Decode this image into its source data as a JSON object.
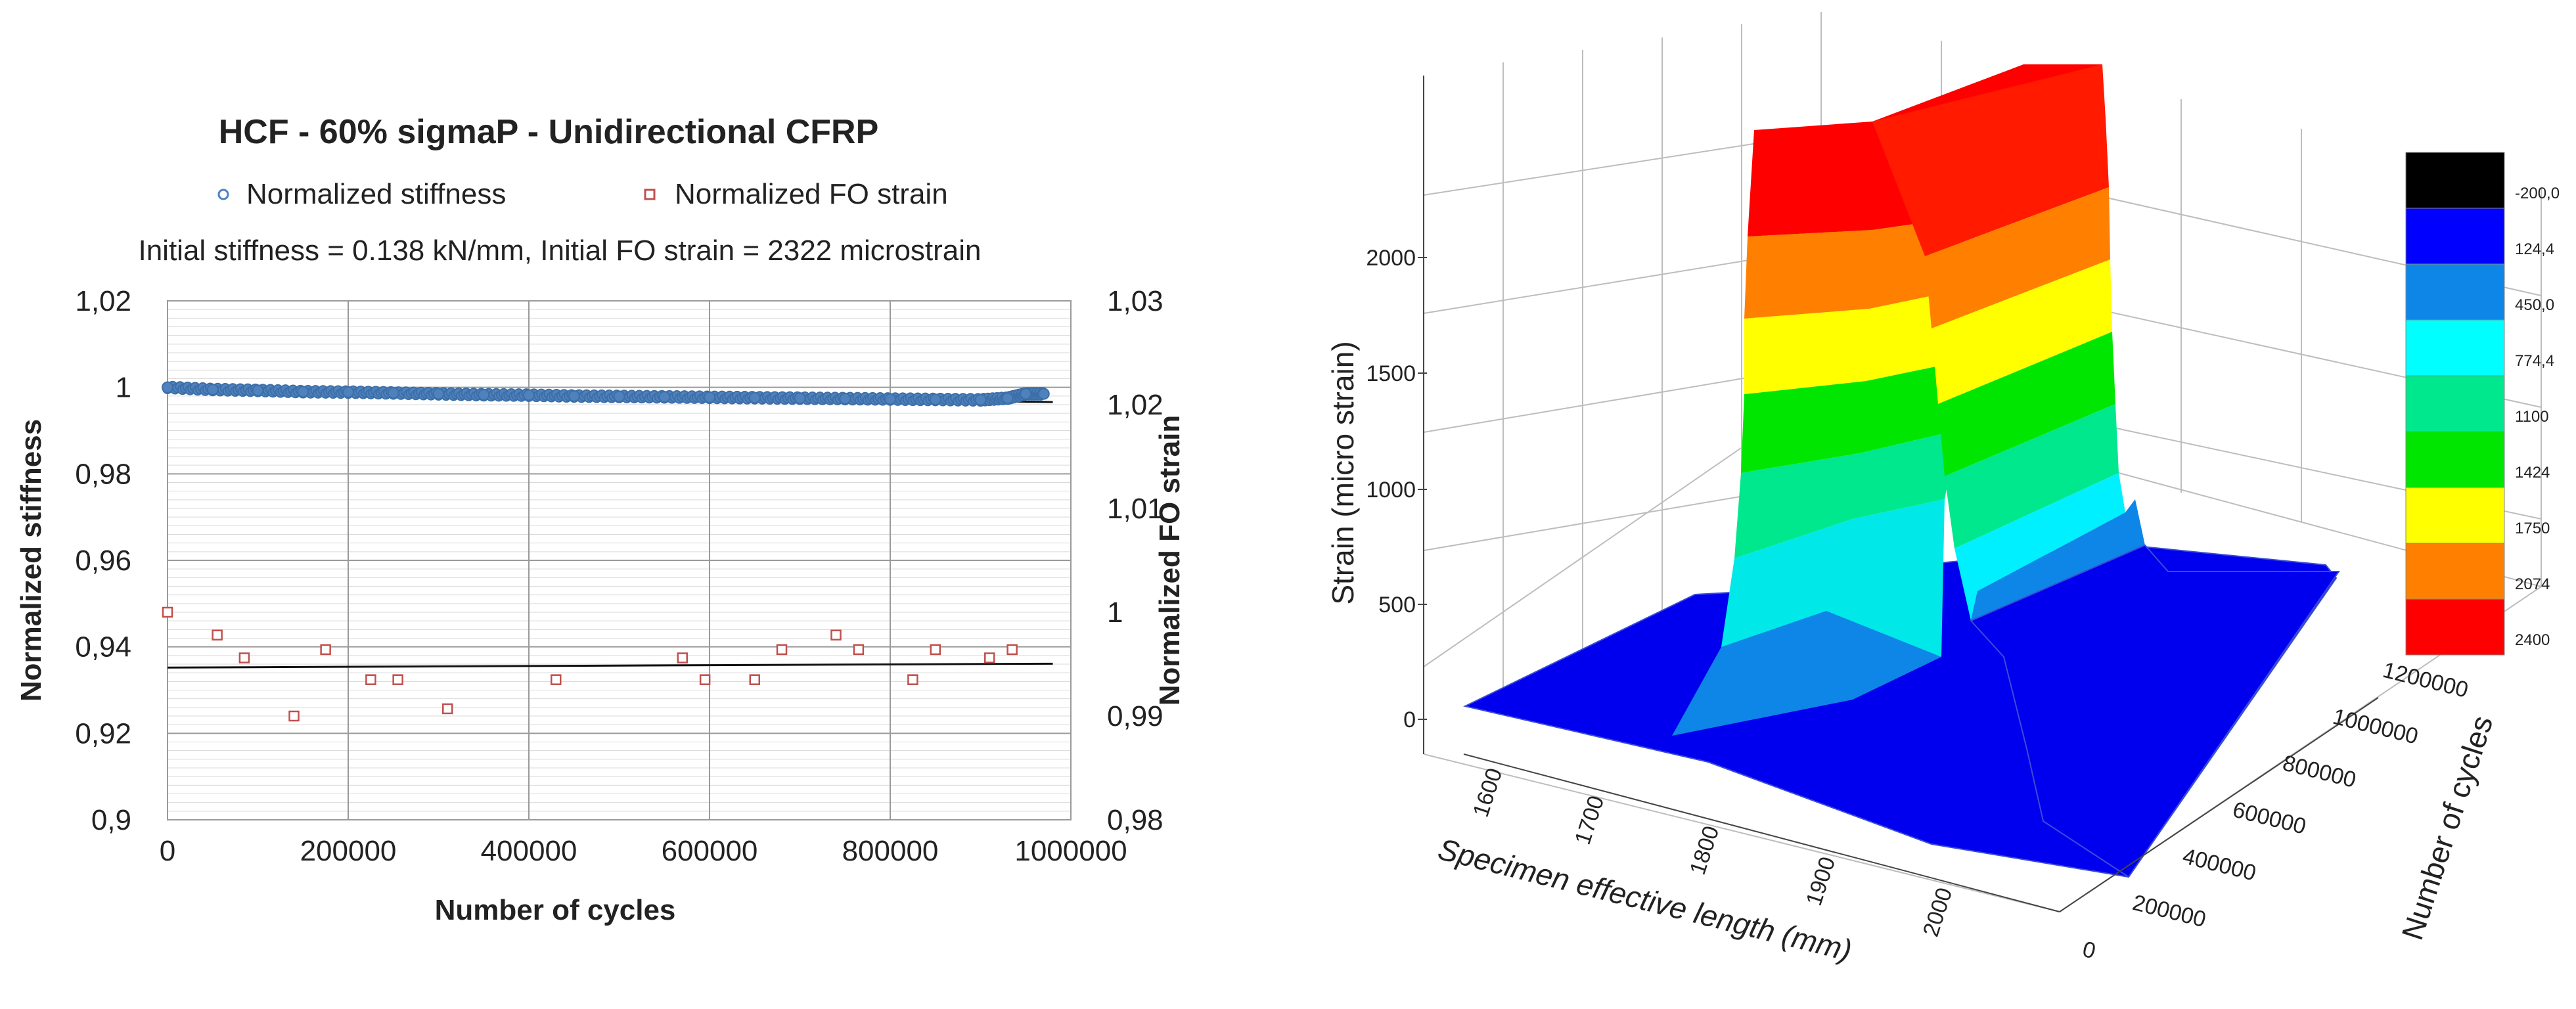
{
  "chart_data": [
    {
      "type": "scatter",
      "title": "HCF - 60% sigmaP - Unidirectional CFRP",
      "subtitle": "Initial stiffness = 0.138 kN/mm, Initial FO strain = 2322 microstrain",
      "xlabel": "Number of cycles",
      "ylabel": "Normalized stiffness",
      "y2label": "Normalized FO strain",
      "xlim": [
        0,
        1000000
      ],
      "ylim": [
        0.9,
        1.02
      ],
      "y2lim": [
        0.98,
        1.03
      ],
      "x_ticks": [
        "0",
        "200000",
        "400000",
        "600000",
        "800000",
        "1000000"
      ],
      "y_ticks": [
        "0,9",
        "0,92",
        "0,94",
        "0,96",
        "0,98",
        "1",
        "1,02"
      ],
      "y2_ticks": [
        "0,98",
        "0,99",
        "1",
        "1,01",
        "1,02",
        "1,03"
      ],
      "legend": [
        "Normalized stiffness",
        "Normalized FO strain"
      ],
      "series": [
        {
          "name": "Normalized stiffness",
          "axis": "left",
          "marker": "circle",
          "color": "#4f81bd",
          "x": [
            0,
            50000,
            100000,
            150000,
            200000,
            250000,
            300000,
            350000,
            400000,
            450000,
            500000,
            550000,
            600000,
            650000,
            700000,
            750000,
            800000,
            850000,
            900000,
            930000,
            950000,
            970000
          ],
          "y": [
            1.0,
            0.9995,
            0.9993,
            0.999,
            0.9989,
            0.9987,
            0.9985,
            0.9983,
            0.9982,
            0.998,
            0.9979,
            0.9978,
            0.9977,
            0.9976,
            0.9975,
            0.9974,
            0.9973,
            0.9972,
            0.9971,
            0.9975,
            0.9985,
            0.9985
          ],
          "trend_left": {
            "x": [
              0,
              980000
            ],
            "y": [
              0.9995,
              0.9966
            ]
          }
        },
        {
          "name": "Normalized FO strain",
          "axis": "right",
          "marker": "square",
          "color": "#c0504d",
          "x": [
            0,
            55000,
            85000,
            140000,
            175000,
            225000,
            255000,
            310000,
            430000,
            570000,
            595000,
            650000,
            680000,
            740000,
            765000,
            825000,
            850000,
            910000,
            935000
          ],
          "y": [
            1.0,
            0.9978,
            0.9956,
            0.99,
            0.9964,
            0.9935,
            0.9935,
            0.9907,
            0.9935,
            0.9956,
            0.9935,
            0.9935,
            0.9964,
            0.9978,
            0.9964,
            0.9935,
            0.9964,
            0.9956,
            0.9964
          ],
          "trend_left": {
            "x": [
              0,
              980000
            ],
            "y": [
              0.9352,
              0.9361
            ]
          }
        }
      ]
    },
    {
      "type": "surface3d",
      "xlabel": "Specimen effective length (mm)",
      "ylabel": "Number of cycles",
      "zlabel": "Strain (micro strain)",
      "x_ticks": [
        "1600",
        "1700",
        "1800",
        "1900",
        "2000"
      ],
      "y_ticks": [
        "0",
        "200000",
        "400000",
        "600000",
        "800000",
        "1000000",
        "1200000"
      ],
      "z_ticks": [
        "0",
        "500",
        "1000",
        "1500",
        "2000"
      ],
      "colorbar_levels": [
        "-200,0",
        "124,4",
        "450,0",
        "774,4",
        "1100",
        "1424",
        "1750",
        "2074",
        "2400"
      ],
      "colorbar_colors": [
        "#000000",
        "#0000ff",
        "#0e86e8",
        "#00ffff",
        "#00e88e",
        "#00e600",
        "#ffff00",
        "#ff8000",
        "#ff0000"
      ],
      "description_values": {
        "peak_strain_approx": 2300,
        "peak_region_mm": [
          1700,
          1800
        ],
        "background_strain_approx": 100
      }
    }
  ]
}
